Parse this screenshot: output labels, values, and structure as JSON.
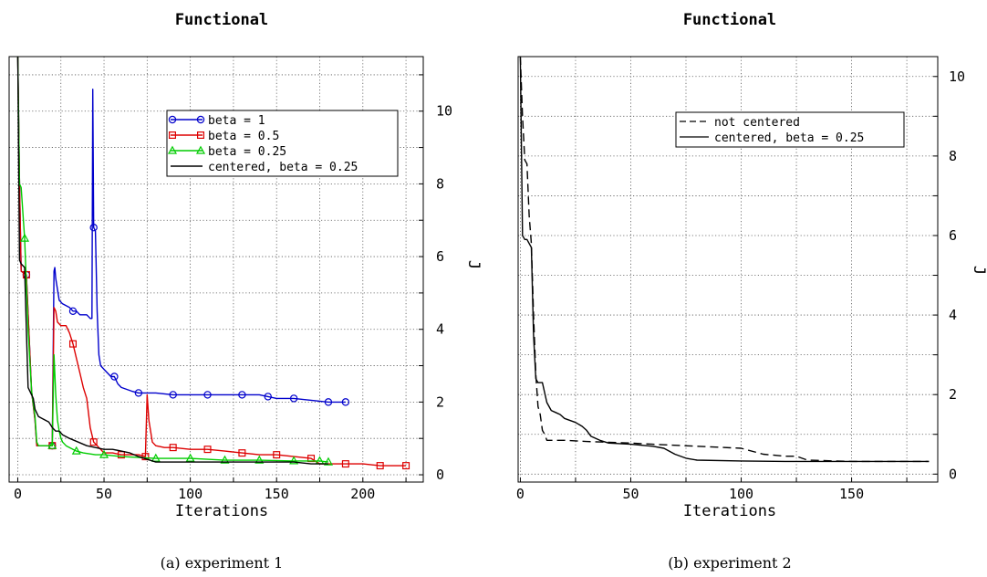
{
  "chart_data": [
    {
      "type": "line",
      "title": "Functional",
      "xlabel": "Iterations",
      "ylabel": "J",
      "caption": "(a) experiment 1",
      "xlim": [
        -5,
        235
      ],
      "ylim": [
        -0.2,
        11.5
      ],
      "xticks": [
        "0",
        "50",
        "100",
        "150",
        "200"
      ],
      "yticks": [
        "0",
        "2",
        "4",
        "6",
        "8",
        "10"
      ],
      "grid": true,
      "y_axis_side": "right",
      "legend_position": "top-right",
      "series": [
        {
          "name": "beta = 1",
          "color": "#0000cc",
          "marker": "circle",
          "x": [
            0,
            1,
            2,
            5,
            8,
            10,
            11,
            12,
            20,
            21,
            21.5,
            22,
            24,
            26,
            30,
            32,
            34,
            36,
            40,
            42,
            43,
            43.5,
            44,
            45,
            46,
            47,
            48,
            50,
            52,
            54,
            56,
            58,
            60,
            66,
            70,
            80,
            90,
            100,
            110,
            120,
            130,
            140,
            145,
            150,
            160,
            170,
            180,
            190
          ],
          "y": [
            11.5,
            8.0,
            5.6,
            5.5,
            2.3,
            1.5,
            0.8,
            0.8,
            0.8,
            5.6,
            5.7,
            5.4,
            4.8,
            4.7,
            4.6,
            4.5,
            4.5,
            4.4,
            4.4,
            4.3,
            4.3,
            10.6,
            6.8,
            6.7,
            4.5,
            3.3,
            3.0,
            2.9,
            2.8,
            2.7,
            2.7,
            2.5,
            2.4,
            2.3,
            2.25,
            2.25,
            2.2,
            2.2,
            2.2,
            2.2,
            2.2,
            2.2,
            2.15,
            2.1,
            2.1,
            2.05,
            2.0,
            2.0
          ]
        },
        {
          "name": "beta = 0.5",
          "color": "#dd0000",
          "marker": "square",
          "x": [
            0,
            1,
            2,
            5,
            8,
            10,
            11,
            12,
            20,
            21,
            22,
            23,
            25,
            28,
            30,
            32,
            34,
            36,
            38,
            40,
            42,
            44,
            46,
            48,
            50,
            55,
            60,
            70,
            74,
            75,
            76,
            77,
            78,
            80,
            85,
            90,
            100,
            110,
            120,
            130,
            140,
            150,
            160,
            170,
            175,
            180,
            190,
            200,
            210,
            220,
            225
          ],
          "y": [
            11.5,
            8.0,
            5.6,
            5.5,
            2.3,
            1.5,
            0.8,
            0.8,
            0.8,
            4.6,
            4.5,
            4.2,
            4.1,
            4.1,
            3.9,
            3.6,
            3.2,
            2.8,
            2.4,
            2.1,
            1.3,
            0.9,
            0.8,
            0.7,
            0.6,
            0.6,
            0.55,
            0.55,
            0.5,
            2.2,
            1.5,
            1.2,
            0.9,
            0.8,
            0.75,
            0.75,
            0.7,
            0.7,
            0.65,
            0.6,
            0.55,
            0.55,
            0.5,
            0.45,
            0.3,
            0.3,
            0.3,
            0.3,
            0.25,
            0.25,
            0.25
          ]
        },
        {
          "name": "beta = 0.25",
          "color": "#00cc00",
          "marker": "triangle",
          "x": [
            0,
            1,
            2,
            4,
            6,
            8,
            10,
            11,
            12,
            20,
            21,
            22,
            23,
            24,
            25,
            26,
            28,
            30,
            34,
            38,
            45,
            50,
            60,
            80,
            100,
            120,
            140,
            160,
            175,
            180
          ],
          "y": [
            11.5,
            8.0,
            7.9,
            6.5,
            4.0,
            2.3,
            1.6,
            0.9,
            0.8,
            0.8,
            3.3,
            2.2,
            1.5,
            1.2,
            1.0,
            0.9,
            0.8,
            0.75,
            0.65,
            0.6,
            0.55,
            0.55,
            0.5,
            0.45,
            0.45,
            0.4,
            0.4,
            0.38,
            0.38,
            0.35
          ]
        },
        {
          "name": "centered, beta = 0.25",
          "color": "#000000",
          "marker": "none",
          "x": [
            0,
            1,
            2,
            4,
            5,
            6,
            7,
            8,
            9,
            10,
            12,
            14,
            16,
            18,
            20,
            22,
            24,
            26,
            28,
            30,
            35,
            40,
            45,
            50,
            55,
            60,
            65,
            70,
            80,
            100,
            120,
            140,
            160,
            170,
            180
          ],
          "y": [
            11.5,
            5.9,
            5.8,
            5.7,
            4.0,
            2.4,
            2.3,
            2.2,
            2.1,
            1.8,
            1.6,
            1.55,
            1.5,
            1.45,
            1.3,
            1.2,
            1.2,
            1.1,
            1.05,
            1.0,
            0.9,
            0.8,
            0.75,
            0.7,
            0.7,
            0.65,
            0.6,
            0.5,
            0.35,
            0.35,
            0.35,
            0.35,
            0.35,
            0.3,
            0.3
          ]
        }
      ]
    },
    {
      "type": "line",
      "title": "Functional",
      "xlabel": "Iterations",
      "ylabel": "J",
      "caption": "(b) experiment 2",
      "xlim": [
        -1,
        189
      ],
      "ylim": [
        -0.2,
        10.5
      ],
      "xticks": [
        "0",
        "50",
        "100",
        "150"
      ],
      "yticks": [
        "0",
        "2",
        "4",
        "6",
        "8",
        "10"
      ],
      "grid": true,
      "y_axis_side": "right",
      "legend_position": "top-right",
      "series": [
        {
          "name": "not centered",
          "color": "#000000",
          "dash": "dashed",
          "x": [
            0,
            1,
            2,
            3,
            4,
            5,
            6,
            7,
            8,
            9,
            10,
            11,
            12,
            20,
            30,
            40,
            50,
            60,
            80,
            100,
            110,
            120,
            125,
            130,
            150,
            170,
            180,
            185
          ],
          "y": [
            10.5,
            9.0,
            7.9,
            7.8,
            6.5,
            5.8,
            4.0,
            2.5,
            1.7,
            1.5,
            1.1,
            1.0,
            0.85,
            0.85,
            0.82,
            0.8,
            0.78,
            0.75,
            0.7,
            0.65,
            0.5,
            0.45,
            0.45,
            0.35,
            0.32,
            0.32,
            0.32,
            0.32
          ]
        },
        {
          "name": "centered, beta = 0.25",
          "color": "#000000",
          "dash": "solid",
          "x": [
            0,
            1,
            2,
            3,
            4,
            5,
            6,
            7,
            8,
            10,
            12,
            14,
            16,
            18,
            20,
            25,
            28,
            30,
            32,
            36,
            40,
            50,
            60,
            65,
            70,
            75,
            80,
            100,
            120,
            150,
            185
          ],
          "y": [
            10.5,
            6.0,
            5.9,
            5.9,
            5.8,
            5.7,
            3.5,
            2.4,
            2.3,
            2.3,
            1.8,
            1.6,
            1.55,
            1.5,
            1.4,
            1.3,
            1.2,
            1.1,
            0.95,
            0.85,
            0.78,
            0.75,
            0.7,
            0.65,
            0.5,
            0.4,
            0.35,
            0.33,
            0.32,
            0.32,
            0.32
          ]
        }
      ]
    }
  ]
}
